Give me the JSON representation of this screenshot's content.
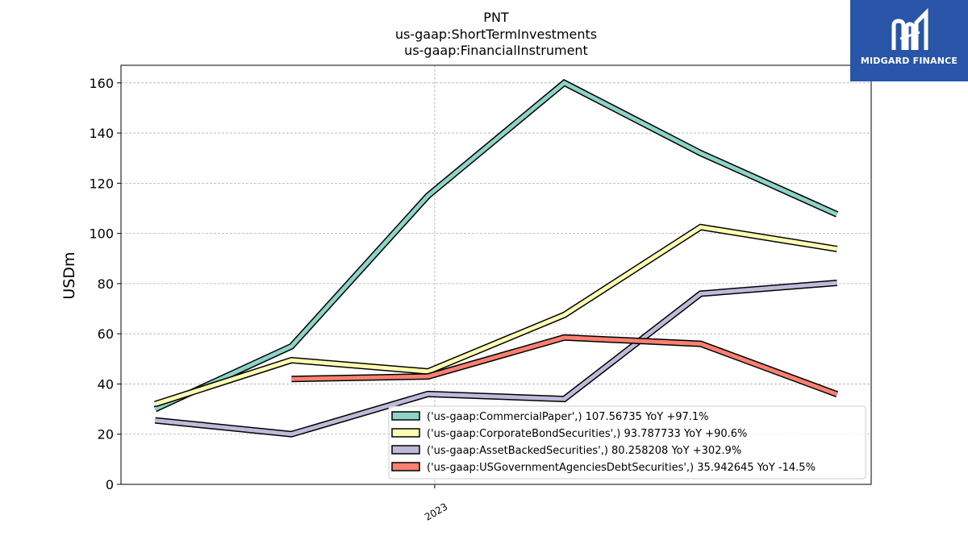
{
  "chart_data": {
    "type": "line",
    "title": [
      "PNT",
      "us-gaap:ShortTermInvestments",
      "us-gaap:FinancialInstrument"
    ],
    "ylabel": "USDm",
    "xlabel": "",
    "ylim": [
      0,
      167
    ],
    "yticks": [
      0,
      20,
      40,
      60,
      80,
      100,
      120,
      140,
      160
    ],
    "x": [
      0,
      1,
      2,
      3,
      4,
      5
    ],
    "xlim": [
      -0.25,
      5.25
    ],
    "xtick_labels": [
      {
        "x": 2.05,
        "label": "2023"
      }
    ],
    "grid": true,
    "legend_position": "lower-right",
    "series": [
      {
        "name": "('us-gaap:CommercialPaper',) 107.56735 YoY +97.1%",
        "color": "#8dd3c7",
        "values": [
          30,
          55,
          115,
          160,
          132,
          107.6
        ]
      },
      {
        "name": "('us-gaap:CorporateBondSecurities',) 93.787733 YoY +90.6%",
        "color": "#ffffb3",
        "values": [
          32,
          49.5,
          45,
          67.5,
          102.5,
          93.8
        ]
      },
      {
        "name": "('us-gaap:AssetBackedSecurities',) 80.258208 YoY +302.9%",
        "color": "#bebada",
        "values": [
          25.5,
          20,
          36,
          34,
          76,
          80.3
        ]
      },
      {
        "name": "('us-gaap:USGovernmentAgenciesDebtSecurities',) 35.942645 YoY -14.5%",
        "color": "#fb8072",
        "values": [
          null,
          42,
          43,
          58.5,
          56,
          35.9
        ]
      }
    ]
  },
  "logo": {
    "text": "MIDGARD FINANCE",
    "bg_color": "#2855a8"
  }
}
